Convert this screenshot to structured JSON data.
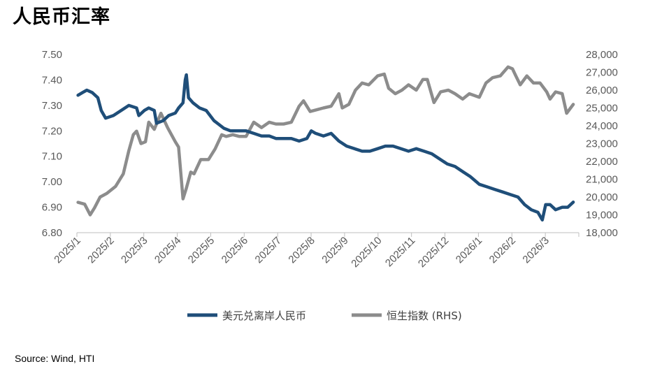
{
  "title": "人民币汇率",
  "source": "Source: Wind, HTI",
  "chart_data": {
    "type": "line",
    "x_labels": [
      "2025/1",
      "2025/2",
      "2025/3",
      "2025/4",
      "2025/5",
      "2025/6",
      "2025/7",
      "2025/8",
      "2025/9",
      "2025/10",
      "2025/11",
      "2025/12",
      "2026/1",
      "2026/2",
      "2026/3"
    ],
    "left_axis": {
      "min": 6.8,
      "max": 7.5,
      "ticks": [
        "7.50",
        "7.40",
        "7.30",
        "7.20",
        "7.10",
        "7.00",
        "6.90",
        "6.80"
      ]
    },
    "right_axis": {
      "min": 18000,
      "max": 28000,
      "ticks": [
        "28,000",
        "27,000",
        "26,000",
        "25,000",
        "24,000",
        "23,000",
        "22,000",
        "21,000",
        "20,000",
        "19,000",
        "18,000"
      ]
    },
    "grid": false,
    "legend_position": "bottom",
    "colors": {
      "usdcnh": "#1f4e79",
      "hsi": "#8c8c8c"
    },
    "series": [
      {
        "name": "美元兑离岸人民币",
        "axis": "left",
        "points": [
          [
            "2025-01-02",
            7.34
          ],
          [
            "2025-01-06",
            7.35
          ],
          [
            "2025-01-10",
            7.36
          ],
          [
            "2025-01-15",
            7.35
          ],
          [
            "2025-01-20",
            7.33
          ],
          [
            "2025-01-23",
            7.28
          ],
          [
            "2025-01-27",
            7.25
          ],
          [
            "2025-02-03",
            7.26
          ],
          [
            "2025-02-10",
            7.28
          ],
          [
            "2025-02-17",
            7.3
          ],
          [
            "2025-02-24",
            7.29
          ],
          [
            "2025-02-26",
            7.26
          ],
          [
            "2025-03-03",
            7.28
          ],
          [
            "2025-03-07",
            7.29
          ],
          [
            "2025-03-12",
            7.28
          ],
          [
            "2025-03-14",
            7.23
          ],
          [
            "2025-03-20",
            7.24
          ],
          [
            "2025-03-25",
            7.26
          ],
          [
            "2025-03-31",
            7.27
          ],
          [
            "2025-04-03",
            7.29
          ],
          [
            "2025-04-07",
            7.31
          ],
          [
            "2025-04-09",
            7.4
          ],
          [
            "2025-04-10",
            7.42
          ],
          [
            "2025-04-12",
            7.33
          ],
          [
            "2025-04-16",
            7.31
          ],
          [
            "2025-04-22",
            7.29
          ],
          [
            "2025-04-28",
            7.28
          ],
          [
            "2025-05-05",
            7.24
          ],
          [
            "2025-05-08",
            7.23
          ],
          [
            "2025-05-14",
            7.21
          ],
          [
            "2025-05-20",
            7.2
          ],
          [
            "2025-05-27",
            7.2
          ],
          [
            "2025-06-03",
            7.2
          ],
          [
            "2025-06-10",
            7.19
          ],
          [
            "2025-06-17",
            7.18
          ],
          [
            "2025-06-24",
            7.18
          ],
          [
            "2025-06-30",
            7.17
          ],
          [
            "2025-07-07",
            7.17
          ],
          [
            "2025-07-14",
            7.17
          ],
          [
            "2025-07-21",
            7.16
          ],
          [
            "2025-07-28",
            7.17
          ],
          [
            "2025-08-01",
            7.2
          ],
          [
            "2025-08-05",
            7.19
          ],
          [
            "2025-08-12",
            7.18
          ],
          [
            "2025-08-19",
            7.19
          ],
          [
            "2025-08-26",
            7.16
          ],
          [
            "2025-09-02",
            7.14
          ],
          [
            "2025-09-09",
            7.13
          ],
          [
            "2025-09-16",
            7.12
          ],
          [
            "2025-09-23",
            7.12
          ],
          [
            "2025-09-30",
            7.13
          ],
          [
            "2025-10-07",
            7.14
          ],
          [
            "2025-10-14",
            7.14
          ],
          [
            "2025-10-21",
            7.13
          ],
          [
            "2025-10-28",
            7.12
          ],
          [
            "2025-11-04",
            7.13
          ],
          [
            "2025-11-11",
            7.12
          ],
          [
            "2025-11-18",
            7.11
          ],
          [
            "2025-11-25",
            7.09
          ],
          [
            "2025-12-02",
            7.07
          ],
          [
            "2025-12-09",
            7.06
          ],
          [
            "2025-12-16",
            7.04
          ],
          [
            "2025-12-23",
            7.02
          ],
          [
            "2025-12-31",
            6.99
          ],
          [
            "2026-01-07",
            6.98
          ],
          [
            "2026-01-14",
            6.97
          ],
          [
            "2026-01-21",
            6.96
          ],
          [
            "2026-01-28",
            6.95
          ],
          [
            "2026-02-04",
            6.94
          ],
          [
            "2026-02-10",
            6.91
          ],
          [
            "2026-02-16",
            6.89
          ],
          [
            "2026-02-22",
            6.88
          ],
          [
            "2026-02-26",
            6.85
          ],
          [
            "2026-03-01",
            6.91
          ],
          [
            "2026-03-05",
            6.91
          ],
          [
            "2026-03-10",
            6.89
          ],
          [
            "2026-03-16",
            6.9
          ],
          [
            "2026-03-21",
            6.9
          ],
          [
            "2026-03-26",
            6.92
          ]
        ]
      },
      {
        "name": "恒生指数 (RHS)",
        "axis": "right",
        "points": [
          [
            "2025-01-02",
            19700
          ],
          [
            "2025-01-08",
            19600
          ],
          [
            "2025-01-13",
            19000
          ],
          [
            "2025-01-17",
            19400
          ],
          [
            "2025-01-22",
            20000
          ],
          [
            "2025-01-28",
            20200
          ],
          [
            "2025-02-05",
            20600
          ],
          [
            "2025-02-12",
            21300
          ],
          [
            "2025-02-17",
            22600
          ],
          [
            "2025-02-21",
            23500
          ],
          [
            "2025-02-24",
            23700
          ],
          [
            "2025-02-28",
            23000
          ],
          [
            "2025-03-04",
            23100
          ],
          [
            "2025-03-07",
            24200
          ],
          [
            "2025-03-12",
            23800
          ],
          [
            "2025-03-18",
            24700
          ],
          [
            "2025-03-24",
            23900
          ],
          [
            "2025-03-31",
            23100
          ],
          [
            "2025-04-03",
            22800
          ],
          [
            "2025-04-07",
            19900
          ],
          [
            "2025-04-10",
            20500
          ],
          [
            "2025-04-14",
            21400
          ],
          [
            "2025-04-17",
            21300
          ],
          [
            "2025-04-23",
            22100
          ],
          [
            "2025-04-30",
            22100
          ],
          [
            "2025-05-06",
            22700
          ],
          [
            "2025-05-12",
            23500
          ],
          [
            "2025-05-16",
            23400
          ],
          [
            "2025-05-22",
            23500
          ],
          [
            "2025-05-28",
            23400
          ],
          [
            "2025-06-03",
            23400
          ],
          [
            "2025-06-10",
            24200
          ],
          [
            "2025-06-17",
            23900
          ],
          [
            "2025-06-24",
            24200
          ],
          [
            "2025-06-30",
            24100
          ],
          [
            "2025-07-07",
            24100
          ],
          [
            "2025-07-14",
            24200
          ],
          [
            "2025-07-21",
            25100
          ],
          [
            "2025-07-25",
            25400
          ],
          [
            "2025-07-31",
            24800
          ],
          [
            "2025-08-06",
            24900
          ],
          [
            "2025-08-12",
            25000
          ],
          [
            "2025-08-19",
            25100
          ],
          [
            "2025-08-26",
            25800
          ],
          [
            "2025-08-29",
            25000
          ],
          [
            "2025-09-04",
            25200
          ],
          [
            "2025-09-10",
            26000
          ],
          [
            "2025-09-16",
            26400
          ],
          [
            "2025-09-22",
            26300
          ],
          [
            "2025-09-30",
            26800
          ],
          [
            "2025-10-06",
            26900
          ],
          [
            "2025-10-10",
            26100
          ],
          [
            "2025-10-16",
            25800
          ],
          [
            "2025-10-22",
            26000
          ],
          [
            "2025-10-28",
            26300
          ],
          [
            "2025-11-04",
            26000
          ],
          [
            "2025-11-10",
            26600
          ],
          [
            "2025-11-14",
            26600
          ],
          [
            "2025-11-20",
            25300
          ],
          [
            "2025-11-26",
            25900
          ],
          [
            "2025-12-03",
            26000
          ],
          [
            "2025-12-09",
            25800
          ],
          [
            "2025-12-16",
            25500
          ],
          [
            "2025-12-22",
            25800
          ],
          [
            "2025-12-31",
            25600
          ],
          [
            "2026-01-06",
            26400
          ],
          [
            "2026-01-12",
            26700
          ],
          [
            "2026-01-19",
            26800
          ],
          [
            "2026-01-26",
            27300
          ],
          [
            "2026-01-30",
            27200
          ],
          [
            "2026-02-02",
            26800
          ],
          [
            "2026-02-06",
            26300
          ],
          [
            "2026-02-12",
            26800
          ],
          [
            "2026-02-18",
            26400
          ],
          [
            "2026-02-24",
            26400
          ],
          [
            "2026-03-02",
            25900
          ],
          [
            "2026-03-05",
            25500
          ],
          [
            "2026-03-10",
            25900
          ],
          [
            "2026-03-16",
            25800
          ],
          [
            "2026-03-20",
            24700
          ],
          [
            "2026-03-26",
            25200
          ]
        ]
      }
    ]
  }
}
